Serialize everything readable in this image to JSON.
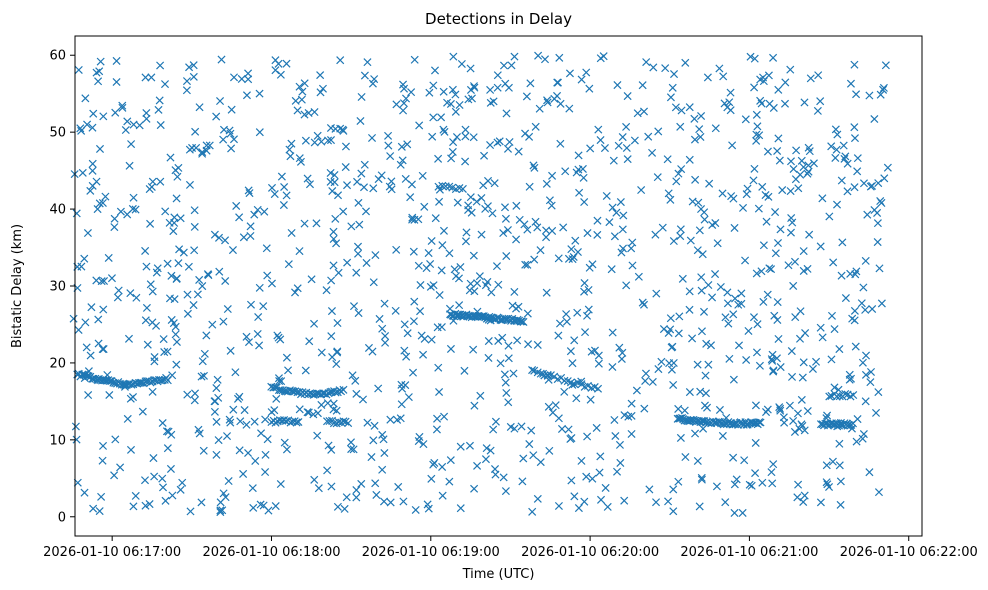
{
  "chart_data": {
    "type": "scatter",
    "title": "Detections in Delay",
    "xlabel": "Time (UTC)",
    "ylabel": "Bistatic Delay (km)",
    "marker": "x",
    "color": "#1f77b4",
    "xlim": [
      -0.2333,
      5.0833
    ],
    "ylim": [
      -2.5,
      62.5
    ],
    "x_units": "minutes after 2026-01-10 06:17:00",
    "x_ticks": [
      {
        "value": 0,
        "label": "2026-01-10 06:17:00"
      },
      {
        "value": 1,
        "label": "2026-01-10 06:18:00"
      },
      {
        "value": 2,
        "label": "2026-01-10 06:19:00"
      },
      {
        "value": 3,
        "label": "2026-01-10 06:20:00"
      },
      {
        "value": 4,
        "label": "2026-01-10 06:21:00"
      },
      {
        "value": 5,
        "label": "2026-01-10 06:22:00"
      }
    ],
    "y_ticks": [
      {
        "value": 0,
        "label": "0"
      },
      {
        "value": 10,
        "label": "10"
      },
      {
        "value": 20,
        "label": "20"
      },
      {
        "value": 30,
        "label": "30"
      },
      {
        "value": 40,
        "label": "40"
      },
      {
        "value": 50,
        "label": "50"
      },
      {
        "value": 60,
        "label": "60"
      }
    ],
    "x_data_range": [
      -0.25,
      4.87
    ],
    "noise_y_range": [
      0.5,
      60
    ],
    "noise_count": 1250,
    "tracks": [
      {
        "x_start": -0.22,
        "x_end": 0.08,
        "y": [
          18.5,
          17.2
        ],
        "points": 30
      },
      {
        "x_start": 0.08,
        "x_end": 0.35,
        "y": [
          17.2,
          17.9
        ],
        "points": 26
      },
      {
        "x_start": 1.0,
        "x_end": 1.45,
        "y": [
          16.9,
          16.0,
          16.4
        ],
        "points": 40
      },
      {
        "x_start": 2.12,
        "x_end": 2.58,
        "y": [
          26.3,
          25.9,
          25.4
        ],
        "points": 55
      },
      {
        "x_start": 2.65,
        "x_end": 3.05,
        "y": [
          18.9,
          17.7,
          16.6
        ],
        "points": 20
      },
      {
        "x_start": 3.55,
        "x_end": 4.07,
        "y": [
          12.8,
          12.2,
          12.2
        ],
        "points": 60
      },
      {
        "x_start": 4.45,
        "x_end": 4.65,
        "y": [
          12.0,
          12.0
        ],
        "points": 24
      },
      {
        "x_start": 4.5,
        "x_end": 4.65,
        "y": [
          15.8,
          15.8
        ],
        "points": 10
      },
      {
        "x_start": 1.0,
        "x_end": 1.17,
        "y": [
          12.4,
          12.4
        ],
        "points": 14
      },
      {
        "x_start": 1.35,
        "x_end": 1.48,
        "y": [
          12.3,
          12.3
        ],
        "points": 10
      },
      {
        "x_start": 2.05,
        "x_end": 2.2,
        "y": [
          43.0,
          42.6
        ],
        "points": 8
      }
    ]
  }
}
